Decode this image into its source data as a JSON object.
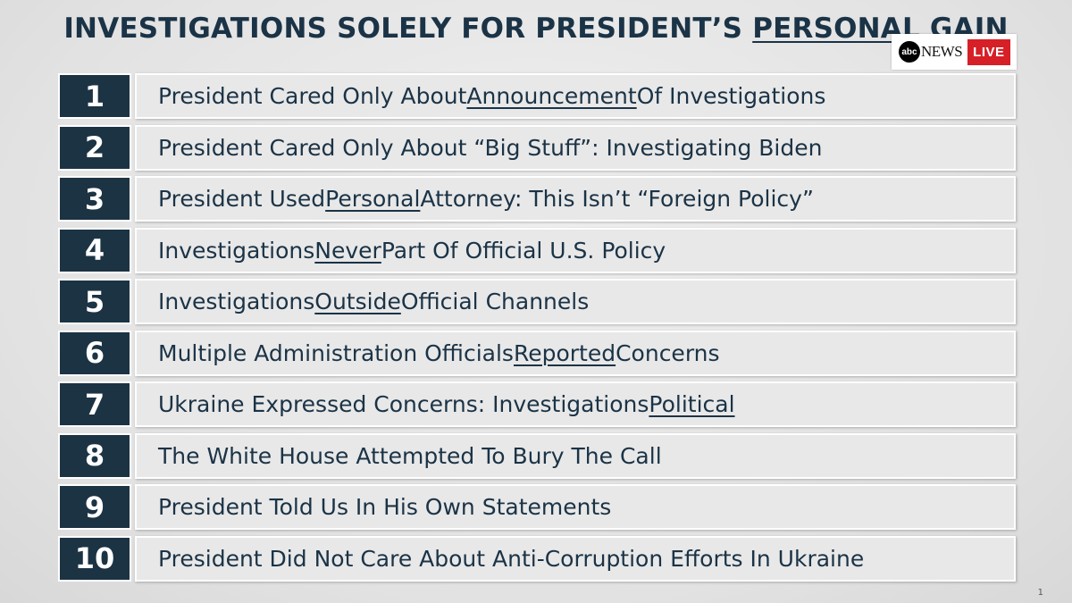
{
  "title": {
    "pre": "INVESTIGATIONS SOLELY FOR PRESIDENT’S ",
    "ul": "PERSONAL GAIN",
    "post": ""
  },
  "logo": {
    "brand": "abc",
    "news": "NEWS",
    "live": "LIVE"
  },
  "items": [
    {
      "num": "1",
      "pre": "President Cared Only About ",
      "ul": "Announcement",
      "post": " Of Investigations"
    },
    {
      "num": "2",
      "pre": "President Cared Only About “Big Stuff”: Investigating Biden",
      "ul": "",
      "post": ""
    },
    {
      "num": "3",
      "pre": "President Used ",
      "ul": "Personal",
      "post": " Attorney: This Isn’t “Foreign Policy”"
    },
    {
      "num": "4",
      "pre": "Investigations ",
      "ul": "Never",
      "post": " Part Of Official U.S. Policy"
    },
    {
      "num": "5",
      "pre": "Investigations ",
      "ul": "Outside",
      "post": " Official Channels"
    },
    {
      "num": "6",
      "pre": "Multiple Administration Officials ",
      "ul": "Reported",
      "post": " Concerns"
    },
    {
      "num": "7",
      "pre": "Ukraine Expressed Concerns: Investigations ",
      "ul": "Political",
      "post": ""
    },
    {
      "num": "8",
      "pre": "The White House Attempted To Bury The Call",
      "ul": "",
      "post": ""
    },
    {
      "num": "9",
      "pre": "President Told Us In His Own Statements",
      "ul": "",
      "post": ""
    },
    {
      "num": "10",
      "pre": "President Did Not Care About Anti-Corruption Efforts In Ukraine",
      "ul": "",
      "post": ""
    }
  ],
  "page_number": "1",
  "colors": {
    "navy": "#1c3344",
    "live_red": "#d61f26",
    "text": "#1b3346"
  }
}
